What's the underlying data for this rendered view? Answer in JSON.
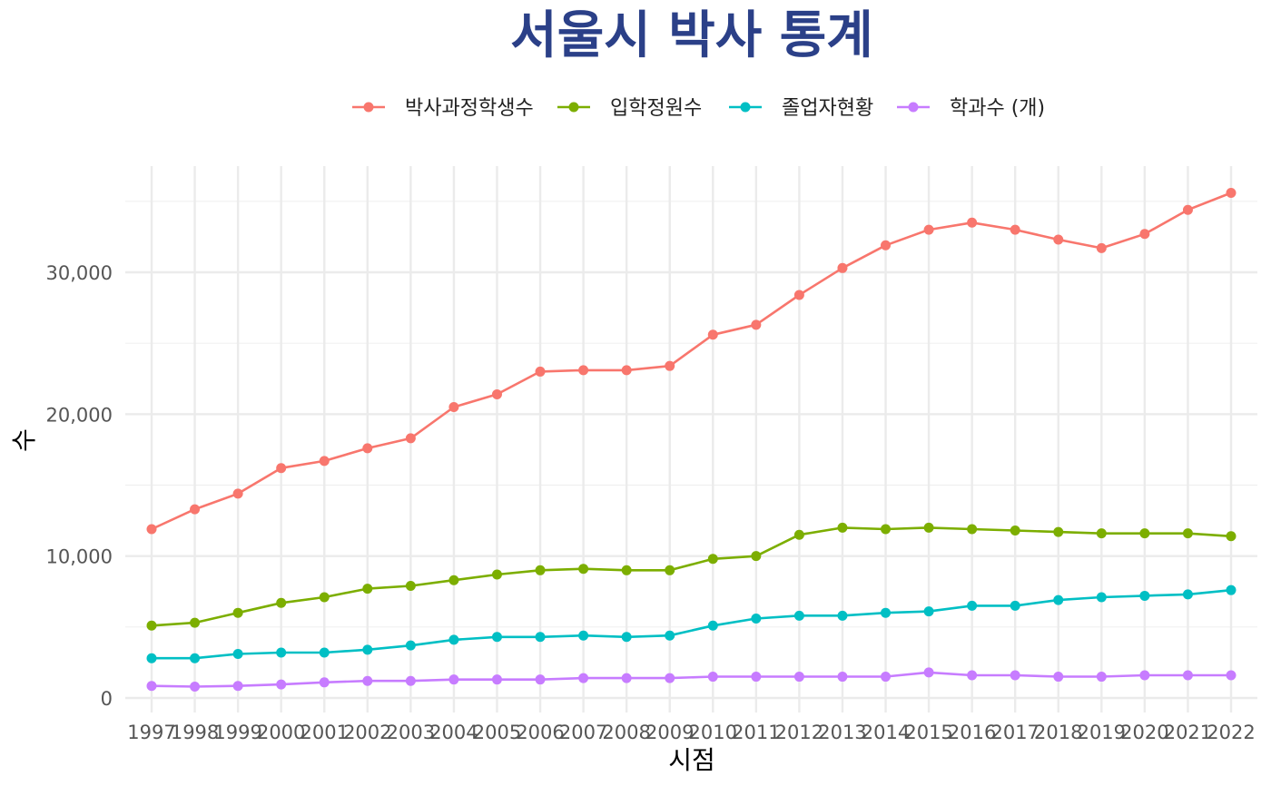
{
  "chart_data": {
    "type": "line",
    "title": "서울시 박사 통계",
    "xlabel": "시점",
    "ylabel": "수",
    "legend_position": "top",
    "grid": true,
    "ylim": [
      0,
      37000
    ],
    "yticks": [
      0,
      10000,
      20000,
      30000
    ],
    "ytick_labels": [
      "0",
      "10,000",
      "20,000",
      "30,000"
    ],
    "x": [
      "1997",
      "1998",
      "1999",
      "2000",
      "2001",
      "2002",
      "2003",
      "2004",
      "2005",
      "2006",
      "2007",
      "2008",
      "2009",
      "2010",
      "2011",
      "2012",
      "2013",
      "2014",
      "2015",
      "2016",
      "2017",
      "2018",
      "2019",
      "2020",
      "2021",
      "2022"
    ],
    "series": [
      {
        "name": "박사과정학생수",
        "color": "#f8766d",
        "values": [
          11900,
          13300,
          14400,
          16200,
          16700,
          17600,
          18300,
          20500,
          21400,
          23000,
          23100,
          23100,
          23400,
          25600,
          26300,
          28400,
          30300,
          31900,
          33000,
          33500,
          33000,
          32300,
          31700,
          32700,
          34400,
          35600
        ]
      },
      {
        "name": "입학정원수",
        "color": "#7cae00",
        "values": [
          5100,
          5300,
          6000,
          6700,
          7100,
          7700,
          7900,
          8300,
          8700,
          9000,
          9100,
          9000,
          9000,
          9800,
          10000,
          11500,
          12000,
          11900,
          12000,
          11900,
          11800,
          11700,
          11600,
          11600,
          11600,
          11400
        ]
      },
      {
        "name": "졸업자현황",
        "color": "#00bfc4",
        "values": [
          2800,
          2800,
          3100,
          3200,
          3200,
          3400,
          3700,
          4100,
          4300,
          4300,
          4400,
          4300,
          4400,
          5100,
          5600,
          5800,
          5800,
          6000,
          6100,
          6500,
          6500,
          6900,
          7100,
          7200,
          7300,
          7600
        ]
      },
      {
        "name": "학과수 (개)",
        "color": "#c77cff",
        "values": [
          850,
          800,
          850,
          950,
          1100,
          1200,
          1200,
          1300,
          1300,
          1300,
          1400,
          1400,
          1400,
          1500,
          1500,
          1500,
          1500,
          1500,
          1800,
          1600,
          1600,
          1500,
          1500,
          1600,
          1600,
          1600
        ]
      }
    ]
  }
}
